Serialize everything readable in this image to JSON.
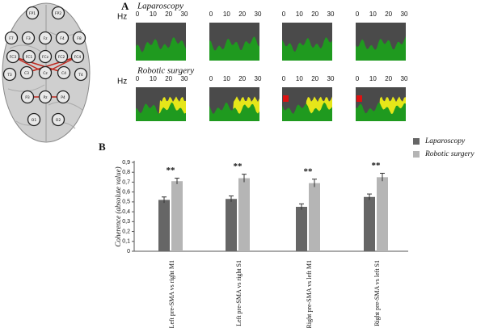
{
  "panel_labels": [
    "A",
    "B"
  ],
  "brain": {
    "electrodes": [
      "FP1",
      "FP2",
      "F7",
      "F3",
      "Fz",
      "F4",
      "F8",
      "FC3",
      "FC1",
      "FCz",
      "FC2",
      "FC4",
      "T3",
      "C3",
      "Cz",
      "C4",
      "T4",
      "P3",
      "Pz",
      "P4",
      "O1",
      "O2"
    ]
  },
  "spectra": {
    "rows": [
      "Laparoscopy",
      "Robotic surgery"
    ],
    "axis_label": "Hz",
    "xticks": [
      0,
      10,
      20,
      30
    ]
  },
  "chart_data": {
    "type": "bar",
    "ylabel": "Coherence (absolute value)",
    "categories": [
      "Left pre-SMA vs right M1",
      "Left pre-SMA vs right S1",
      "Right pre-SMA vs left M1",
      "Right pre-SMA vs left S1"
    ],
    "series": [
      {
        "name": "Laparoscopy",
        "color": "#666666",
        "values": [
          0.52,
          0.53,
          0.45,
          0.55
        ],
        "errors": [
          0.03,
          0.03,
          0.03,
          0.03
        ]
      },
      {
        "name": "Robotic surgery",
        "color": "#b5b5b5",
        "values": [
          0.71,
          0.74,
          0.69,
          0.75
        ],
        "errors": [
          0.03,
          0.04,
          0.04,
          0.04
        ]
      }
    ],
    "annotations": [
      "**",
      "**",
      "**",
      "**"
    ],
    "ylim": [
      0,
      0.9
    ],
    "yticks": [
      0,
      {
        "value": 0.1,
        "label": "0,1"
      },
      {
        "value": 0.2,
        "label": "0,2"
      },
      {
        "value": 0.3,
        "label": "0,3"
      },
      {
        "value": 0.4,
        "label": "0,4"
      },
      {
        "value": 0.5,
        "label": "0,5"
      },
      {
        "value": 0.6,
        "label": "0,6"
      },
      {
        "value": 0.7,
        "label": "0,7"
      },
      {
        "value": 0.8,
        "label": "0,8"
      },
      {
        "value": 0.9,
        "label": "0,9"
      }
    ],
    "legend": "right"
  }
}
